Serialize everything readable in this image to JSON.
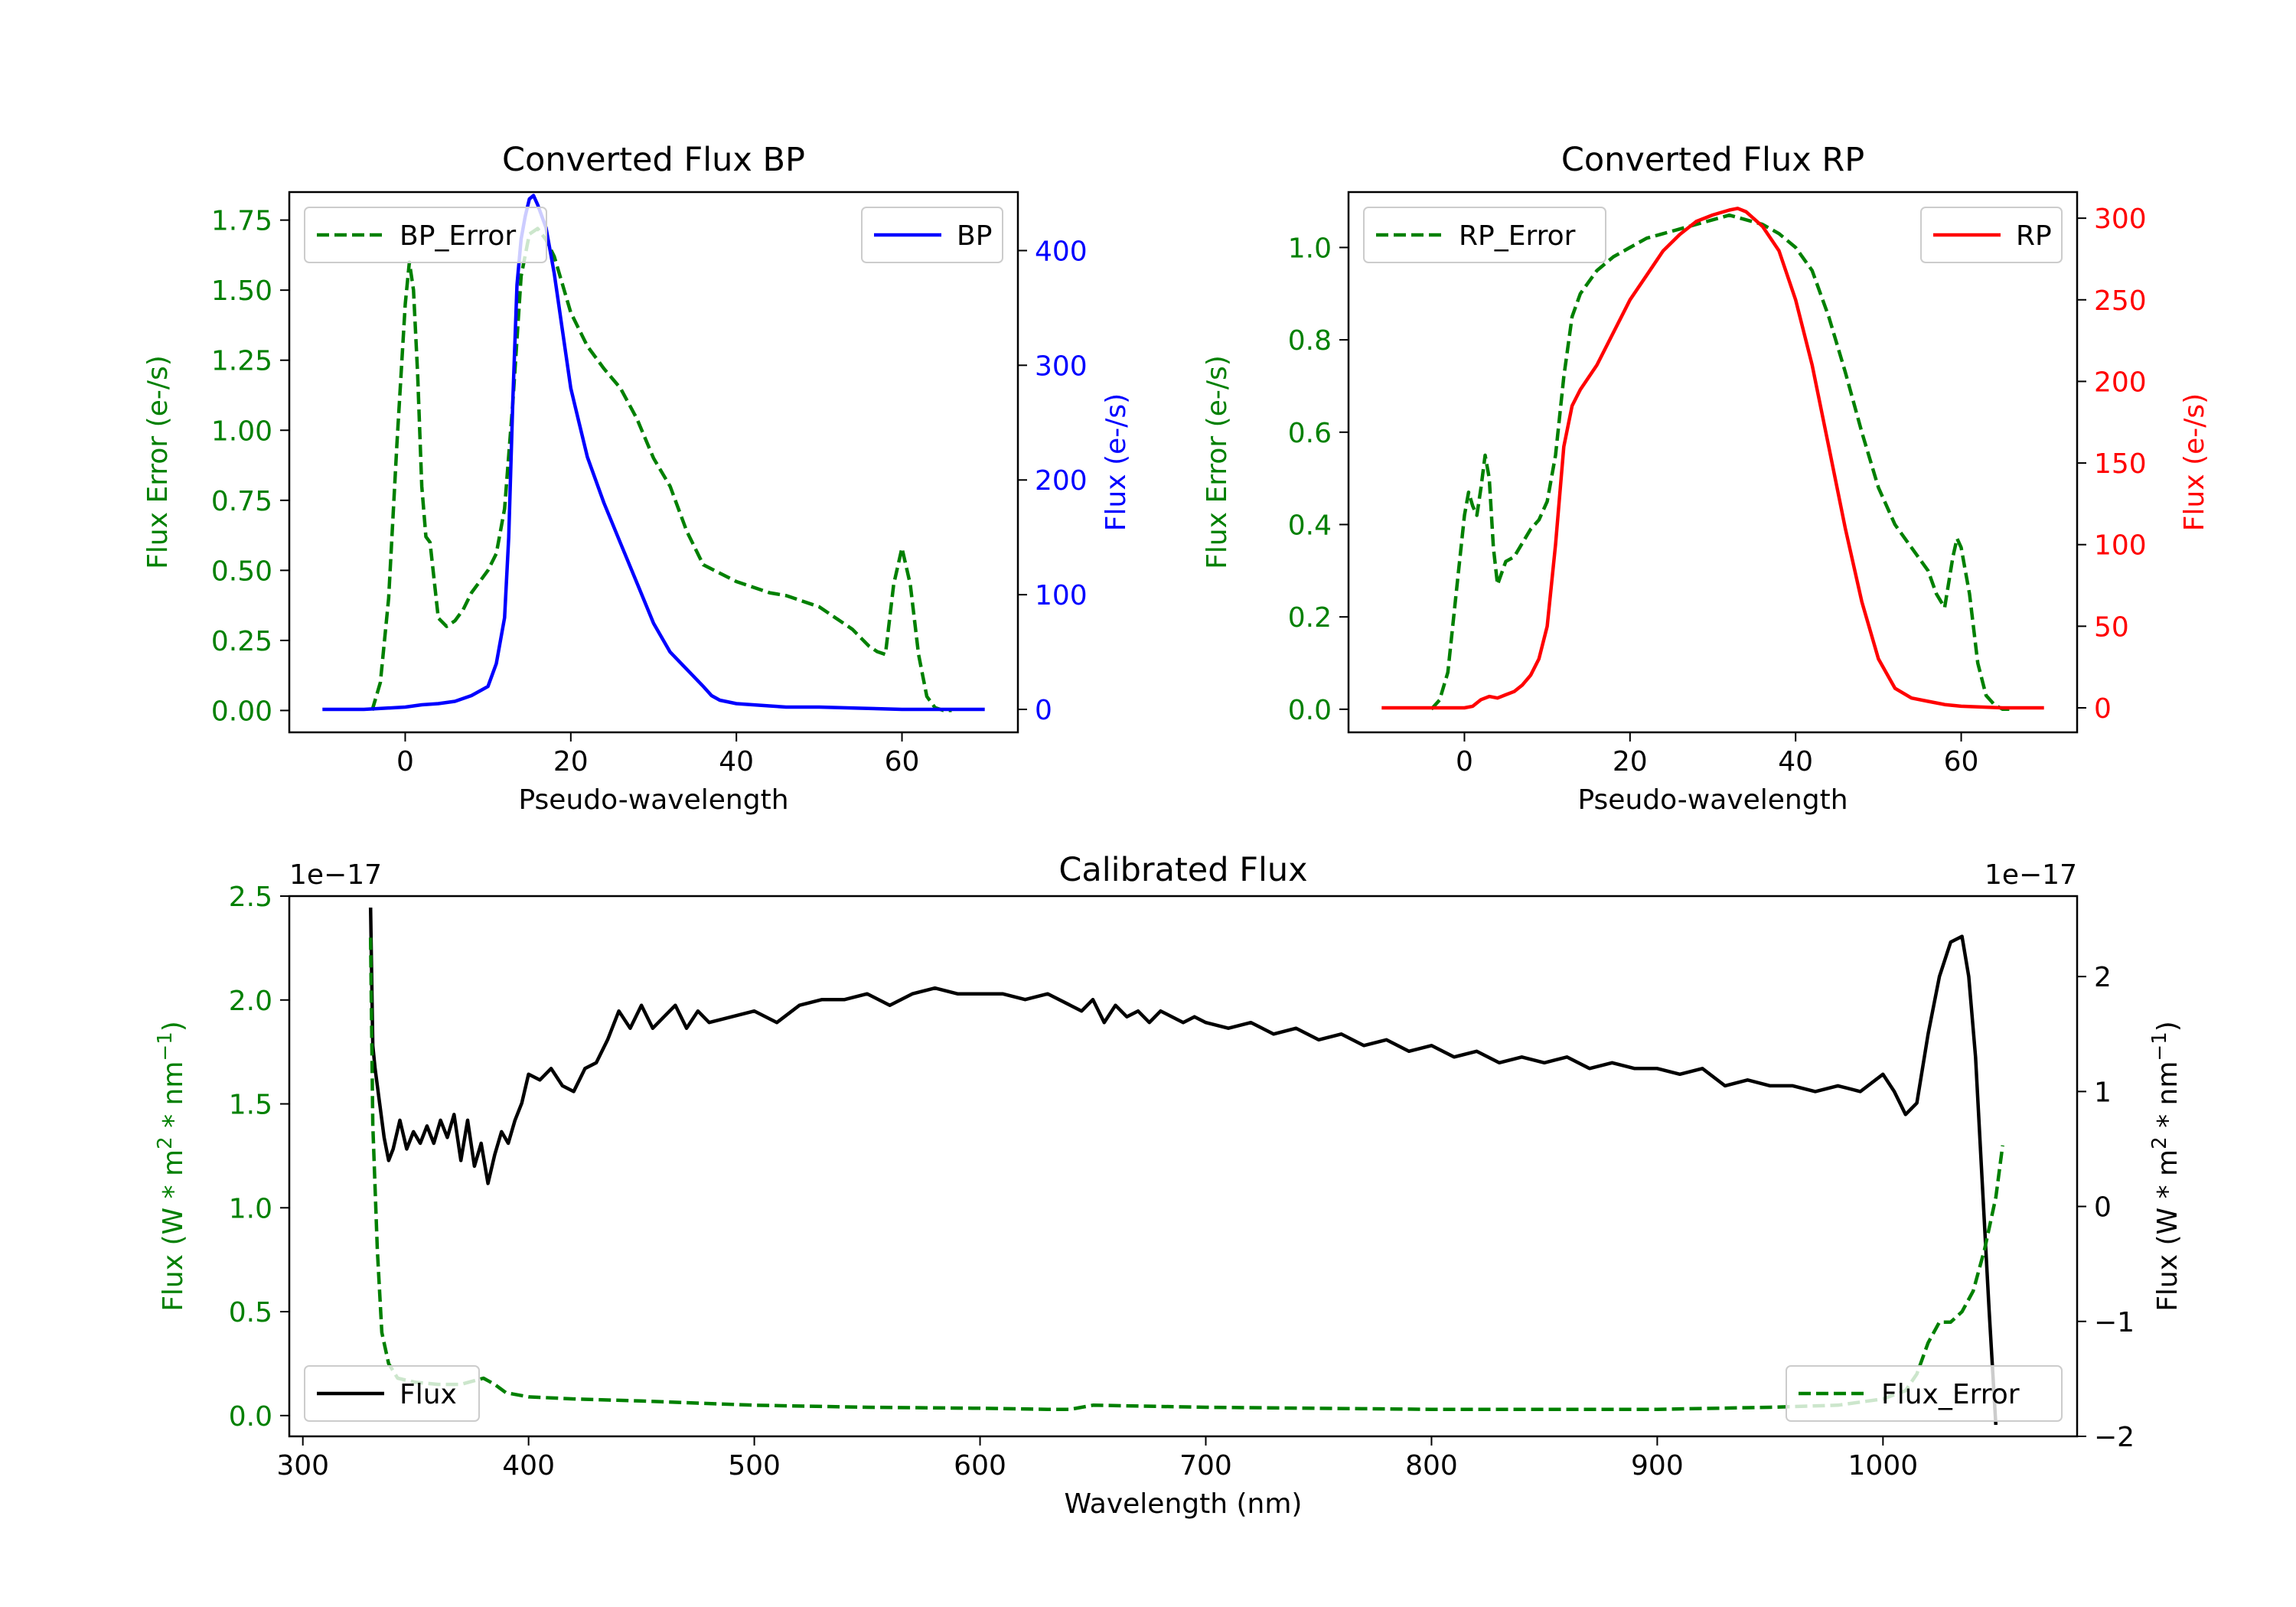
{
  "chart_data": [
    {
      "type": "line",
      "title": "Converted Flux BP",
      "xlabel": "Pseudo-wavelength",
      "ylabel_left": "Flux Error (e-/s)",
      "ylabel_right": "Flux (e-/s)",
      "xlim": [
        -14,
        74
      ],
      "ylim_left": [
        -0.078,
        1.85
      ],
      "ylim_right": [
        -20,
        451
      ],
      "xticks": [
        "0",
        "20",
        "40",
        "60"
      ],
      "xtick_values": [
        0,
        20,
        40,
        60
      ],
      "yticks_left": [
        "0.00",
        "0.25",
        "0.50",
        "0.75",
        "1.00",
        "1.25",
        "1.50",
        "1.75"
      ],
      "ytick_values_left": [
        0,
        0.25,
        0.5,
        0.75,
        1.0,
        1.25,
        1.5,
        1.75
      ],
      "yticks_right": [
        "0",
        "100",
        "200",
        "300",
        "400"
      ],
      "ytick_values_right": [
        0,
        100,
        200,
        300,
        400
      ],
      "left_color": "#008000",
      "right_color": "#0000ff",
      "legend_left": {
        "label": "BP_Error",
        "position": "upper-left"
      },
      "legend_right": {
        "label": "BP",
        "position": "upper-right"
      },
      "series": [
        {
          "name": "BP_Error",
          "axis": "left",
          "style": "dashed",
          "color": "#008000",
          "x": [
            -4,
            -3,
            -2,
            -1,
            0,
            0.5,
            1,
            1.5,
            2,
            2.5,
            3,
            4,
            5,
            6,
            7,
            8,
            9,
            10,
            11,
            12,
            13,
            14,
            15,
            16,
            17,
            18,
            19,
            20,
            22,
            24,
            26,
            28,
            30,
            32,
            34,
            36,
            38,
            40,
            42,
            44,
            46,
            48,
            50,
            52,
            54,
            56,
            57,
            58,
            59,
            60,
            61,
            62,
            63,
            64,
            65,
            66
          ],
          "y": [
            0.0,
            0.1,
            0.4,
            0.95,
            1.45,
            1.6,
            1.5,
            1.2,
            0.8,
            0.62,
            0.6,
            0.33,
            0.3,
            0.32,
            0.36,
            0.42,
            0.46,
            0.5,
            0.56,
            0.72,
            1.1,
            1.55,
            1.7,
            1.72,
            1.68,
            1.62,
            1.52,
            1.42,
            1.3,
            1.22,
            1.15,
            1.04,
            0.9,
            0.8,
            0.64,
            0.52,
            0.49,
            0.46,
            0.44,
            0.42,
            0.41,
            0.39,
            0.37,
            0.33,
            0.29,
            0.23,
            0.21,
            0.2,
            0.45,
            0.58,
            0.45,
            0.2,
            0.05,
            0.01,
            0.0,
            0.0
          ]
        },
        {
          "name": "BP",
          "axis": "right",
          "style": "solid",
          "color": "#0000ff",
          "x": [
            -10,
            -5,
            0,
            2,
            4,
            6,
            8,
            10,
            11,
            12,
            12.5,
            13,
            13.5,
            14,
            14.5,
            15,
            15.5,
            16,
            17,
            18,
            19,
            20,
            21,
            22,
            24,
            26,
            28,
            30,
            32,
            34,
            36,
            37,
            38,
            40,
            42,
            44,
            46,
            50,
            55,
            60,
            65,
            70
          ],
          "y": [
            0,
            0,
            2,
            4,
            5,
            7,
            12,
            20,
            40,
            80,
            150,
            270,
            370,
            410,
            430,
            445,
            448,
            440,
            420,
            380,
            330,
            280,
            250,
            220,
            180,
            145,
            110,
            75,
            50,
            35,
            20,
            12,
            8,
            5,
            4,
            3,
            2,
            2,
            1,
            0,
            0,
            0
          ]
        }
      ]
    },
    {
      "type": "line",
      "title": "Converted Flux RP",
      "xlabel": "Pseudo-wavelength",
      "ylabel_left": "Flux Error (e-/s)",
      "ylabel_right": "Flux (e-/s)",
      "xlim": [
        -14,
        74
      ],
      "ylim_left": [
        -0.05,
        1.12
      ],
      "ylim_right": [
        -15,
        316
      ],
      "xticks": [
        "0",
        "20",
        "40",
        "60"
      ],
      "xtick_values": [
        0,
        20,
        40,
        60
      ],
      "yticks_left": [
        "0.0",
        "0.2",
        "0.4",
        "0.6",
        "0.8",
        "1.0"
      ],
      "ytick_values_left": [
        0,
        0.2,
        0.4,
        0.6,
        0.8,
        1.0
      ],
      "yticks_right": [
        "0",
        "50",
        "100",
        "150",
        "200",
        "250",
        "300"
      ],
      "ytick_values_right": [
        0,
        50,
        100,
        150,
        200,
        250,
        300
      ],
      "left_color": "#008000",
      "right_color": "#ff0000",
      "legend_left": {
        "label": "RP_Error",
        "position": "upper-left"
      },
      "legend_right": {
        "label": "RP",
        "position": "upper-right"
      },
      "series": [
        {
          "name": "RP_Error",
          "axis": "left",
          "style": "dashed",
          "color": "#008000",
          "x": [
            -4,
            -3,
            -2,
            -1,
            0,
            0.5,
            1,
            1.5,
            2,
            2.5,
            3,
            3.5,
            4,
            5,
            6,
            7,
            8,
            9,
            10,
            11,
            12,
            13,
            14,
            16,
            18,
            20,
            22,
            24,
            26,
            28,
            30,
            32,
            34,
            36,
            38,
            40,
            42,
            44,
            46,
            48,
            50,
            52,
            54,
            56,
            57,
            58,
            59,
            59.5,
            60,
            61,
            62,
            63,
            64,
            65,
            66
          ],
          "y": [
            0.0,
            0.02,
            0.08,
            0.25,
            0.42,
            0.47,
            0.44,
            0.42,
            0.48,
            0.55,
            0.5,
            0.35,
            0.27,
            0.32,
            0.33,
            0.36,
            0.39,
            0.41,
            0.45,
            0.55,
            0.72,
            0.85,
            0.9,
            0.95,
            0.98,
            1.0,
            1.02,
            1.03,
            1.04,
            1.05,
            1.06,
            1.07,
            1.06,
            1.05,
            1.03,
            1.0,
            0.95,
            0.85,
            0.73,
            0.6,
            0.48,
            0.4,
            0.35,
            0.3,
            0.25,
            0.22,
            0.33,
            0.37,
            0.35,
            0.25,
            0.1,
            0.03,
            0.01,
            0.0,
            0.0
          ]
        },
        {
          "name": "RP",
          "axis": "right",
          "style": "solid",
          "color": "#ff0000",
          "x": [
            -10,
            -5,
            0,
            1,
            2,
            3,
            4,
            5,
            6,
            7,
            8,
            9,
            10,
            11,
            12,
            13,
            14,
            16,
            18,
            20,
            22,
            24,
            26,
            28,
            30,
            32,
            33,
            34,
            36,
            38,
            40,
            42,
            44,
            46,
            48,
            50,
            52,
            54,
            56,
            58,
            60,
            65,
            70
          ],
          "y": [
            0,
            0,
            0,
            1,
            5,
            7,
            6,
            8,
            10,
            14,
            20,
            30,
            50,
            100,
            160,
            185,
            195,
            210,
            230,
            250,
            265,
            280,
            290,
            298,
            302,
            305,
            306,
            304,
            295,
            280,
            250,
            210,
            160,
            110,
            65,
            30,
            12,
            6,
            4,
            2,
            1,
            0,
            0
          ]
        }
      ]
    },
    {
      "type": "line",
      "title": "Calibrated Flux",
      "xlabel": "Wavelength (nm)",
      "ylabel_left": "Flux (W * m",
      "ylabel_right": "Flux (W * m",
      "ylabel_parts": {
        "sup2": "2",
        "mid": " * nm",
        "supneg1": "−1",
        "close": ")"
      },
      "xlim": [
        294,
        1086
      ],
      "ylim_left": [
        -0.1,
        2.5
      ],
      "ylim_right": [
        -2.0,
        2.7
      ],
      "offset_text_left": "1e−17",
      "offset_text_right": "1e−17",
      "xticks": [
        "300",
        "400",
        "500",
        "600",
        "700",
        "800",
        "900",
        "1000"
      ],
      "xtick_values": [
        300,
        400,
        500,
        600,
        700,
        800,
        900,
        1000
      ],
      "yticks_left": [
        "0.0",
        "0.5",
        "1.0",
        "1.5",
        "2.0",
        "2.5"
      ],
      "ytick_values_left": [
        0,
        0.5,
        1.0,
        1.5,
        2.0,
        2.5
      ],
      "yticks_right": [
        "−2",
        "−1",
        "0",
        "1",
        "2"
      ],
      "ytick_values_right": [
        -2,
        -1,
        0,
        1,
        2
      ],
      "left_color": "#008000",
      "right_color": "#000000",
      "legend_left": {
        "label": "Flux",
        "position": "lower-left"
      },
      "legend_right": {
        "label": "Flux_Error",
        "position": "lower-right"
      },
      "series": [
        {
          "name": "Flux",
          "axis": "right",
          "style": "solid",
          "color": "#000000",
          "x": [
            330,
            331,
            332,
            334,
            336,
            338,
            340,
            343,
            346,
            349,
            352,
            355,
            358,
            361,
            364,
            367,
            370,
            373,
            376,
            379,
            382,
            385,
            388,
            391,
            394,
            397,
            400,
            405,
            410,
            415,
            420,
            425,
            430,
            435,
            440,
            445,
            450,
            455,
            460,
            465,
            470,
            475,
            480,
            490,
            500,
            510,
            520,
            530,
            540,
            550,
            560,
            570,
            580,
            590,
            600,
            610,
            620,
            630,
            640,
            645,
            650,
            655,
            660,
            665,
            670,
            675,
            680,
            685,
            690,
            695,
            700,
            710,
            720,
            730,
            740,
            750,
            760,
            770,
            780,
            790,
            800,
            810,
            820,
            830,
            840,
            850,
            860,
            870,
            880,
            890,
            900,
            910,
            920,
            930,
            940,
            950,
            960,
            970,
            980,
            990,
            1000,
            1005,
            1010,
            1015,
            1020,
            1025,
            1030,
            1035,
            1038,
            1041,
            1044,
            1047,
            1050
          ],
          "y": [
            2.6,
            1.4,
            1.2,
            0.9,
            0.6,
            0.4,
            0.5,
            0.75,
            0.5,
            0.65,
            0.55,
            0.7,
            0.55,
            0.75,
            0.6,
            0.8,
            0.4,
            0.75,
            0.35,
            0.55,
            0.2,
            0.45,
            0.65,
            0.55,
            0.75,
            0.9,
            1.15,
            1.1,
            1.2,
            1.05,
            1.0,
            1.2,
            1.25,
            1.45,
            1.7,
            1.55,
            1.75,
            1.55,
            1.65,
            1.75,
            1.55,
            1.7,
            1.6,
            1.65,
            1.7,
            1.6,
            1.75,
            1.8,
            1.8,
            1.85,
            1.75,
            1.85,
            1.9,
            1.85,
            1.85,
            1.85,
            1.8,
            1.85,
            1.75,
            1.7,
            1.8,
            1.6,
            1.75,
            1.65,
            1.7,
            1.6,
            1.7,
            1.65,
            1.6,
            1.65,
            1.6,
            1.55,
            1.6,
            1.5,
            1.55,
            1.45,
            1.5,
            1.4,
            1.45,
            1.35,
            1.4,
            1.3,
            1.35,
            1.25,
            1.3,
            1.25,
            1.3,
            1.2,
            1.25,
            1.2,
            1.2,
            1.15,
            1.2,
            1.05,
            1.1,
            1.05,
            1.05,
            1.0,
            1.05,
            1.0,
            1.15,
            1.0,
            0.8,
            0.9,
            1.5,
            2.0,
            2.3,
            2.35,
            2.0,
            1.3,
            0.2,
            -0.9,
            -1.9
          ]
        },
        {
          "name": "Flux_Error",
          "axis": "left",
          "style": "dashed",
          "color": "#008000",
          "x": [
            330,
            331,
            333,
            335,
            338,
            342,
            350,
            360,
            370,
            380,
            385,
            390,
            400,
            420,
            450,
            500,
            550,
            600,
            630,
            640,
            650,
            700,
            800,
            900,
            950,
            980,
            1000,
            1010,
            1015,
            1020,
            1025,
            1030,
            1035,
            1040,
            1045,
            1050,
            1053
          ],
          "y": [
            2.3,
            1.4,
            0.8,
            0.4,
            0.25,
            0.18,
            0.16,
            0.15,
            0.15,
            0.18,
            0.15,
            0.11,
            0.09,
            0.08,
            0.07,
            0.05,
            0.04,
            0.035,
            0.03,
            0.03,
            0.05,
            0.04,
            0.03,
            0.03,
            0.04,
            0.05,
            0.08,
            0.12,
            0.2,
            0.35,
            0.45,
            0.45,
            0.5,
            0.6,
            0.8,
            1.05,
            1.3
          ]
        }
      ]
    }
  ]
}
